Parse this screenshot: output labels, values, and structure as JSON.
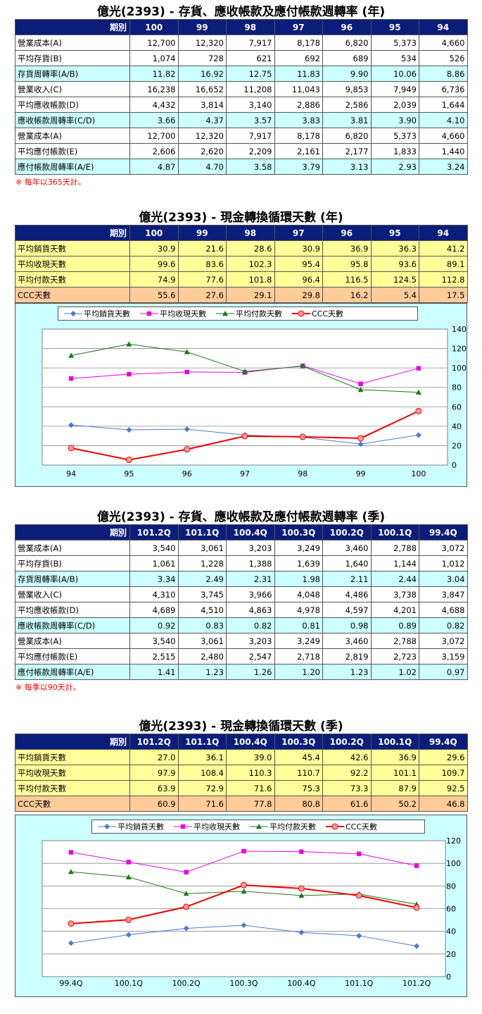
{
  "annual_ratio": {
    "title": "億光(2393) -  存貨、應收帳款及應付帳款週轉率 (年)",
    "header_label": "期別",
    "periods": [
      "100",
      "99",
      "98",
      "97",
      "96",
      "95",
      "94"
    ],
    "rows": [
      {
        "label": "營業成本(A)",
        "values": [
          "12,700",
          "12,320",
          "7,917",
          "8,178",
          "6,820",
          "5,373",
          "4,660"
        ],
        "tone": "w"
      },
      {
        "label": "平均存貨(B)",
        "values": [
          "1,074",
          "728",
          "621",
          "692",
          "689",
          "534",
          "526"
        ],
        "tone": "w"
      },
      {
        "label": "存貨周轉率(A/B)",
        "values": [
          "11.82",
          "16.92",
          "12.75",
          "11.83",
          "9.90",
          "10.06",
          "8.86"
        ],
        "tone": "c"
      },
      {
        "label": "營業收入(C)",
        "values": [
          "16,238",
          "16,652",
          "11,208",
          "11,043",
          "9,853",
          "7,949",
          "6,736"
        ],
        "tone": "w"
      },
      {
        "label": "平均應收帳款(D)",
        "values": [
          "4,432",
          "3,814",
          "3,140",
          "2,886",
          "2,586",
          "2,039",
          "1,644"
        ],
        "tone": "w"
      },
      {
        "label": "應收帳款周轉率(C/D)",
        "values": [
          "3.66",
          "4.37",
          "3.57",
          "3.83",
          "3.81",
          "3.90",
          "4.10"
        ],
        "tone": "c"
      },
      {
        "label": "營業成本(A)",
        "values": [
          "12,700",
          "12,320",
          "7,917",
          "8,178",
          "6,820",
          "5,373",
          "4,660"
        ],
        "tone": "w"
      },
      {
        "label": "平均應付帳款(E)",
        "values": [
          "2,606",
          "2,620",
          "2,209",
          "2,161",
          "2,177",
          "1,833",
          "1,440"
        ],
        "tone": "w"
      },
      {
        "label": "應付帳款周轉率(A/E)",
        "values": [
          "4.87",
          "4.70",
          "3.58",
          "3.79",
          "3.13",
          "2.93",
          "3.24"
        ],
        "tone": "c"
      }
    ],
    "note": "※ 每年以365天計。"
  },
  "annual_ccc": {
    "title": "億光(2393) -  現金轉換循環天數 (年)",
    "header_label": "期別",
    "periods": [
      "100",
      "99",
      "98",
      "97",
      "96",
      "95",
      "94"
    ],
    "rows": [
      {
        "label": "平均銷貨天數",
        "values": [
          "30.9",
          "21.6",
          "28.6",
          "30.9",
          "36.9",
          "36.3",
          "41.2"
        ],
        "tone": "y"
      },
      {
        "label": "平均收現天數",
        "values": [
          "99.6",
          "83.6",
          "102.3",
          "95.4",
          "95.8",
          "93.6",
          "89.1"
        ],
        "tone": "y"
      },
      {
        "label": "平均付款天數",
        "values": [
          "74.9",
          "77.6",
          "101.8",
          "96.4",
          "116.5",
          "124.5",
          "112.8"
        ],
        "tone": "y"
      },
      {
        "label": "CCC天數",
        "values": [
          "55.6",
          "27.6",
          "29.1",
          "29.8",
          "16.2",
          "5.4",
          "17.5"
        ],
        "tone": "o"
      }
    ]
  },
  "quarter_ratio": {
    "title": "億光(2393) -  存貨、應收帳款及應付帳款週轉率 (季)",
    "header_label": "期別",
    "periods": [
      "101.2Q",
      "101.1Q",
      "100.4Q",
      "100.3Q",
      "100.2Q",
      "100.1Q",
      "99.4Q"
    ],
    "rows": [
      {
        "label": "營業成本(A)",
        "values": [
          "3,540",
          "3,061",
          "3,203",
          "3,249",
          "3,460",
          "2,788",
          "3,072"
        ],
        "tone": "w"
      },
      {
        "label": "平均存貨(B)",
        "values": [
          "1,061",
          "1,228",
          "1,388",
          "1,639",
          "1,640",
          "1,144",
          "1,012"
        ],
        "tone": "w"
      },
      {
        "label": "存貨周轉率(A/B)",
        "values": [
          "3.34",
          "2.49",
          "2.31",
          "1.98",
          "2.11",
          "2.44",
          "3.04"
        ],
        "tone": "c"
      },
      {
        "label": "營業收入(C)",
        "values": [
          "4,310",
          "3,745",
          "3,966",
          "4,048",
          "4,486",
          "3,738",
          "3,847"
        ],
        "tone": "w"
      },
      {
        "label": "平均應收帳款(D)",
        "values": [
          "4,689",
          "4,510",
          "4,863",
          "4,978",
          "4,597",
          "4,201",
          "4,688"
        ],
        "tone": "w"
      },
      {
        "label": "應收帳款周轉率(C/D)",
        "values": [
          "0.92",
          "0.83",
          "0.82",
          "0.81",
          "0.98",
          "0.89",
          "0.82"
        ],
        "tone": "c"
      },
      {
        "label": "營業成本(A)",
        "values": [
          "3,540",
          "3,061",
          "3,203",
          "3,249",
          "3,460",
          "2,788",
          "3,072"
        ],
        "tone": "w"
      },
      {
        "label": "平均應付帳款(E)",
        "values": [
          "2,515",
          "2,480",
          "2,547",
          "2,718",
          "2,819",
          "2,723",
          "3,159"
        ],
        "tone": "w"
      },
      {
        "label": "應付帳款周轉率(A/E)",
        "values": [
          "1.41",
          "1.23",
          "1.26",
          "1.20",
          "1.23",
          "1.02",
          "0.97"
        ],
        "tone": "c"
      }
    ],
    "note": "※ 每季以90天計。"
  },
  "quarter_ccc": {
    "title": "億光(2393) -  現金轉換循環天數 (季)",
    "header_label": "期別",
    "periods": [
      "101.2Q",
      "101.1Q",
      "100.4Q",
      "100.3Q",
      "100.2Q",
      "100.1Q",
      "99.4Q"
    ],
    "rows": [
      {
        "label": "平均銷貨天數",
        "values": [
          "27.0",
          "36.1",
          "39.0",
          "45.4",
          "42.6",
          "36.9",
          "29.6"
        ],
        "tone": "y"
      },
      {
        "label": "平均收現天數",
        "values": [
          "97.9",
          "108.4",
          "110.3",
          "110.7",
          "92.2",
          "101.1",
          "109.7"
        ],
        "tone": "y"
      },
      {
        "label": "平均付款天數",
        "values": [
          "63.9",
          "72.9",
          "71.6",
          "75.3",
          "73.3",
          "87.9",
          "92.5"
        ],
        "tone": "y"
      },
      {
        "label": "CCC天數",
        "values": [
          "60.9",
          "71.6",
          "77.8",
          "80.8",
          "61.6",
          "50.2",
          "46.8"
        ],
        "tone": "o"
      }
    ]
  },
  "chart_data": [
    {
      "type": "line",
      "categories": [
        "94",
        "95",
        "96",
        "97",
        "98",
        "99",
        "100"
      ],
      "ylim": [
        0,
        140
      ],
      "yticks": [
        0,
        20,
        40,
        60,
        80,
        100,
        120,
        140
      ],
      "grid": true,
      "legend": "top",
      "series": [
        {
          "name": "平均銷貨天數",
          "values": [
            41.2,
            36.3,
            36.9,
            30.9,
            28.6,
            21.6,
            30.9
          ],
          "color": "#4a7bd4",
          "marker": "diamond"
        },
        {
          "name": "平均收現天數",
          "values": [
            89.1,
            93.6,
            95.8,
            95.4,
            102.3,
            83.6,
            99.6
          ],
          "color": "#e800e8",
          "marker": "square"
        },
        {
          "name": "平均付款天數",
          "values": [
            112.8,
            124.5,
            116.5,
            96.4,
            101.8,
            77.6,
            74.9
          ],
          "color": "#1a7a1a",
          "marker": "triangle"
        },
        {
          "name": "CCC天數",
          "values": [
            17.5,
            5.4,
            16.2,
            29.8,
            29.1,
            27.6,
            55.6
          ],
          "color": "#ee0000",
          "marker": "circle"
        }
      ]
    },
    {
      "type": "line",
      "categories": [
        "99.4Q",
        "100.1Q",
        "100.2Q",
        "100.3Q",
        "100.4Q",
        "101.1Q",
        "101.2Q"
      ],
      "ylim": [
        0,
        120
      ],
      "yticks": [
        0,
        20,
        40,
        60,
        80,
        100,
        120
      ],
      "grid": true,
      "legend": "top",
      "series": [
        {
          "name": "平均銷貨天數",
          "values": [
            29.6,
            36.9,
            42.6,
            45.4,
            39.0,
            36.1,
            27.0
          ],
          "color": "#4a7bd4",
          "marker": "diamond"
        },
        {
          "name": "平均收現天數",
          "values": [
            109.7,
            101.1,
            92.2,
            110.7,
            110.3,
            108.4,
            97.9
          ],
          "color": "#e800e8",
          "marker": "square"
        },
        {
          "name": "平均付款天數",
          "values": [
            92.5,
            87.9,
            73.3,
            75.3,
            71.6,
            72.9,
            63.9
          ],
          "color": "#1a7a1a",
          "marker": "triangle"
        },
        {
          "name": "CCC天數",
          "values": [
            46.8,
            50.2,
            61.6,
            80.8,
            77.8,
            71.6,
            60.9
          ],
          "color": "#ee0000",
          "marker": "circle"
        }
      ]
    }
  ]
}
